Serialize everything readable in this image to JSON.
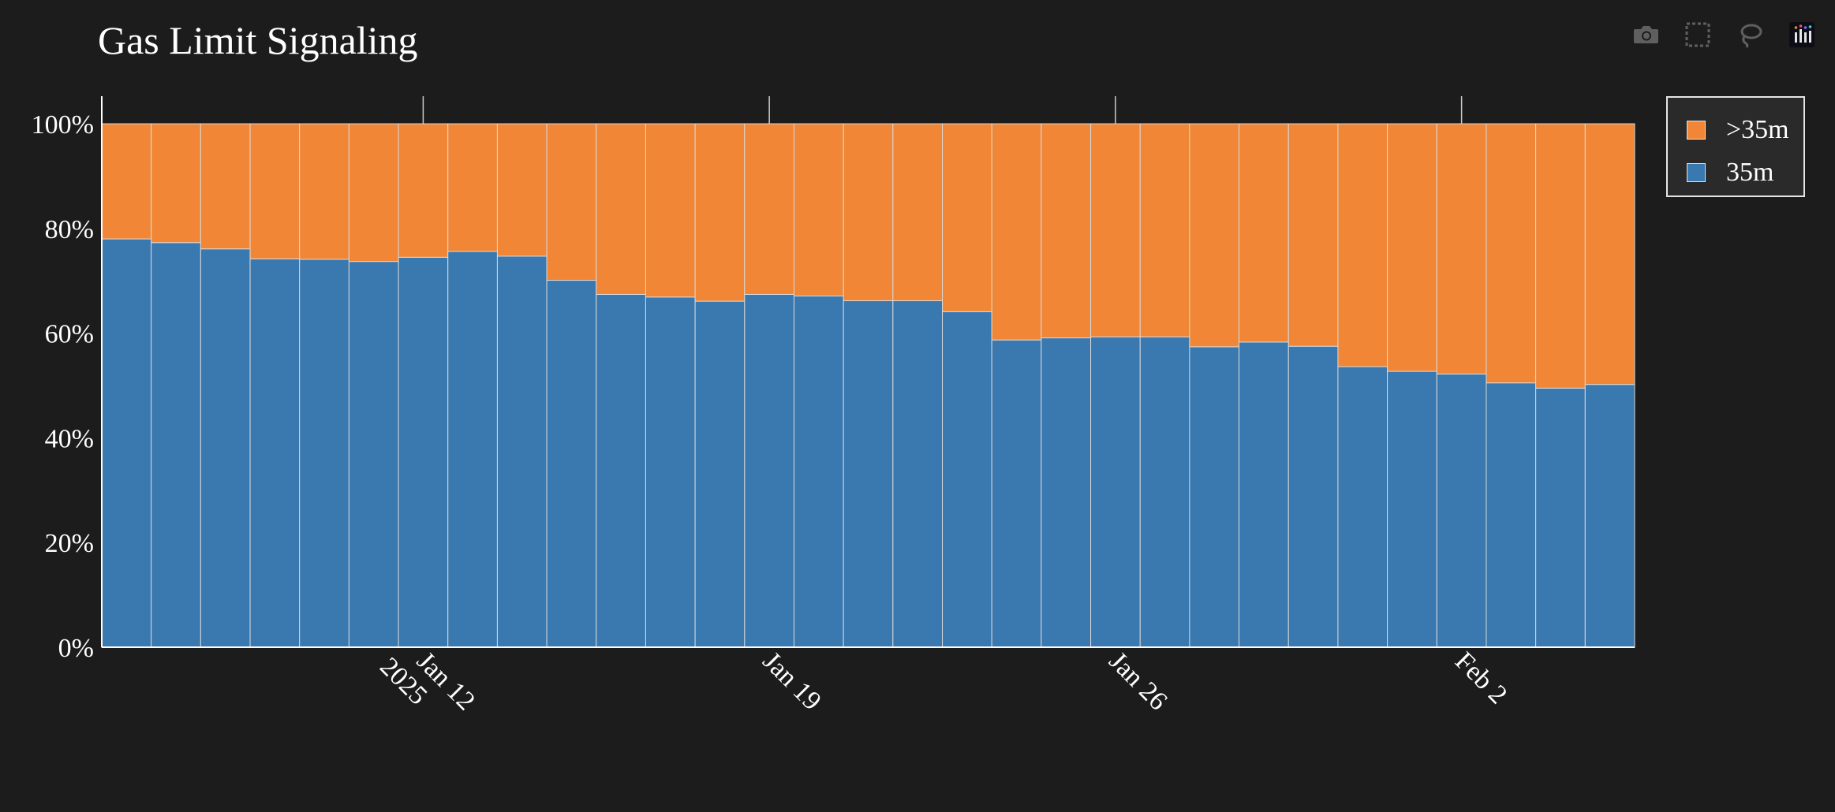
{
  "toolbar": {
    "buttons": [
      {
        "name": "camera-icon",
        "label": "Download plot as a png"
      },
      {
        "name": "box-select-icon",
        "label": "Box Select"
      },
      {
        "name": "lasso-select-icon",
        "label": "Lasso Select"
      },
      {
        "name": "plotly-logo-icon",
        "label": "Produced with Plotly"
      }
    ]
  },
  "colors": {
    "background": "#1c1c1c",
    "series_35m": "#3a78b0",
    "series_gt35m": "#f08636",
    "bar_edge": "#d9d9d9"
  },
  "chart_data": {
    "type": "bar",
    "barmode": "stack",
    "barnorm": "percent",
    "title": "Gas Limit Signaling",
    "xlabel": "",
    "ylabel": "",
    "ylim": [
      0,
      100
    ],
    "yticks": [
      "0%",
      "20%",
      "40%",
      "60%",
      "80%",
      "100%"
    ],
    "xticks": [
      {
        "date": "2025-01-12",
        "label": "Jan 12",
        "sublabel": "2025"
      },
      {
        "date": "2025-01-19",
        "label": "Jan 19",
        "sublabel": ""
      },
      {
        "date": "2025-01-26",
        "label": "Jan 26",
        "sublabel": ""
      },
      {
        "date": "2025-02-02",
        "label": "Feb 2",
        "sublabel": ""
      }
    ],
    "x": [
      "2025-01-06",
      "2025-01-07",
      "2025-01-08",
      "2025-01-09",
      "2025-01-10",
      "2025-01-11",
      "2025-01-12",
      "2025-01-13",
      "2025-01-14",
      "2025-01-15",
      "2025-01-16",
      "2025-01-17",
      "2025-01-18",
      "2025-01-19",
      "2025-01-20",
      "2025-01-21",
      "2025-01-22",
      "2025-01-23",
      "2025-01-24",
      "2025-01-25",
      "2025-01-26",
      "2025-01-27",
      "2025-01-28",
      "2025-01-29",
      "2025-01-30",
      "2025-01-31",
      "2025-02-01",
      "2025-02-02",
      "2025-02-03",
      "2025-02-04",
      "2025-02-05"
    ],
    "legend_position": "top-right",
    "grid": false,
    "series": [
      {
        "name": "35m",
        "color": "#3a78b0",
        "values": [
          78.0,
          77.3,
          76.1,
          74.2,
          74.1,
          73.7,
          74.5,
          75.6,
          74.7,
          70.1,
          67.4,
          66.9,
          66.1,
          67.4,
          67.1,
          66.2,
          66.2,
          64.1,
          58.7,
          59.1,
          59.3,
          59.3,
          57.4,
          58.3,
          57.5,
          53.6,
          52.7,
          52.2,
          50.5,
          49.5,
          50.2
        ]
      },
      {
        "name": ">35m",
        "color": "#f08636",
        "values": [
          22.0,
          22.7,
          23.9,
          25.8,
          25.9,
          26.3,
          25.5,
          24.4,
          25.3,
          29.9,
          32.6,
          33.1,
          33.9,
          32.6,
          32.9,
          33.8,
          33.8,
          35.9,
          41.3,
          40.9,
          40.7,
          40.7,
          42.6,
          41.7,
          42.5,
          46.4,
          47.3,
          47.8,
          49.5,
          50.5,
          49.8
        ]
      }
    ]
  },
  "legend": {
    "items": [
      {
        "name": ">35m",
        "color": "#f08636"
      },
      {
        "name": "35m",
        "color": "#3a78b0"
      }
    ]
  }
}
